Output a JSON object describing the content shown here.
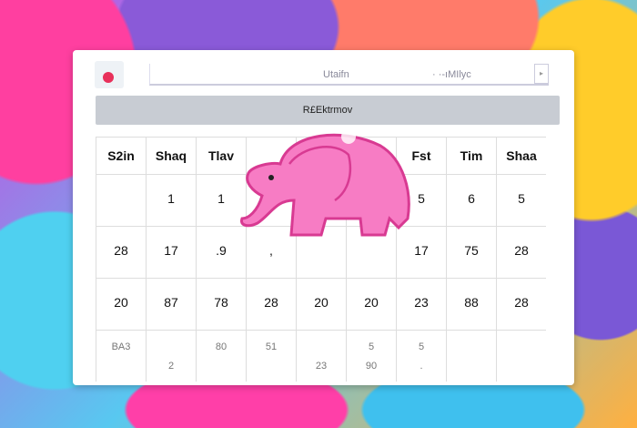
{
  "window": {
    "address_left": "Utaifn",
    "address_right": "·  ·-ıMIlyc",
    "dropdown_icon": "chevron-down-icon"
  },
  "banner": {
    "title": "R£Ektrmov"
  },
  "calendar": {
    "headers": [
      "S2in",
      "Shaq",
      "Tlav",
      "",
      "",
      "",
      "Fst",
      "Tim",
      "Shaa"
    ],
    "rows": [
      [
        [
          "",
          ""
        ],
        [
          "1",
          ""
        ],
        [
          "1",
          ""
        ],
        [
          "",
          ""
        ],
        [
          "",
          ""
        ],
        [
          "",
          ""
        ],
        [
          "5",
          ""
        ],
        [
          "6",
          ""
        ],
        [
          "5",
          ""
        ]
      ],
      [
        [
          "28",
          ""
        ],
        [
          "17",
          ""
        ],
        [
          ".9",
          ""
        ],
        [
          ",",
          ""
        ],
        [
          "",
          ""
        ],
        [
          "",
          ""
        ],
        [
          "17",
          ""
        ],
        [
          "75",
          ""
        ],
        [
          "28",
          ""
        ]
      ],
      [
        [
          "20",
          ""
        ],
        [
          "87",
          ""
        ],
        [
          "78",
          ""
        ],
        [
          "28",
          ""
        ],
        [
          "20",
          ""
        ],
        [
          "20",
          ""
        ],
        [
          "23",
          ""
        ],
        [
          "88",
          ""
        ],
        [
          "28",
          ""
        ]
      ],
      [
        [
          "BA3",
          ""
        ],
        [
          "",
          "2"
        ],
        [
          "80",
          ""
        ],
        [
          "51",
          ""
        ],
        [
          "",
          "23"
        ],
        [
          "5",
          "90"
        ],
        [
          "5",
          "."
        ],
        [
          "",
          ""
        ],
        [
          "",
          ""
        ]
      ]
    ]
  },
  "colors": {
    "accent": "#e8305a",
    "elephant": "#f77cc4",
    "banner": "#c8ccd3"
  }
}
